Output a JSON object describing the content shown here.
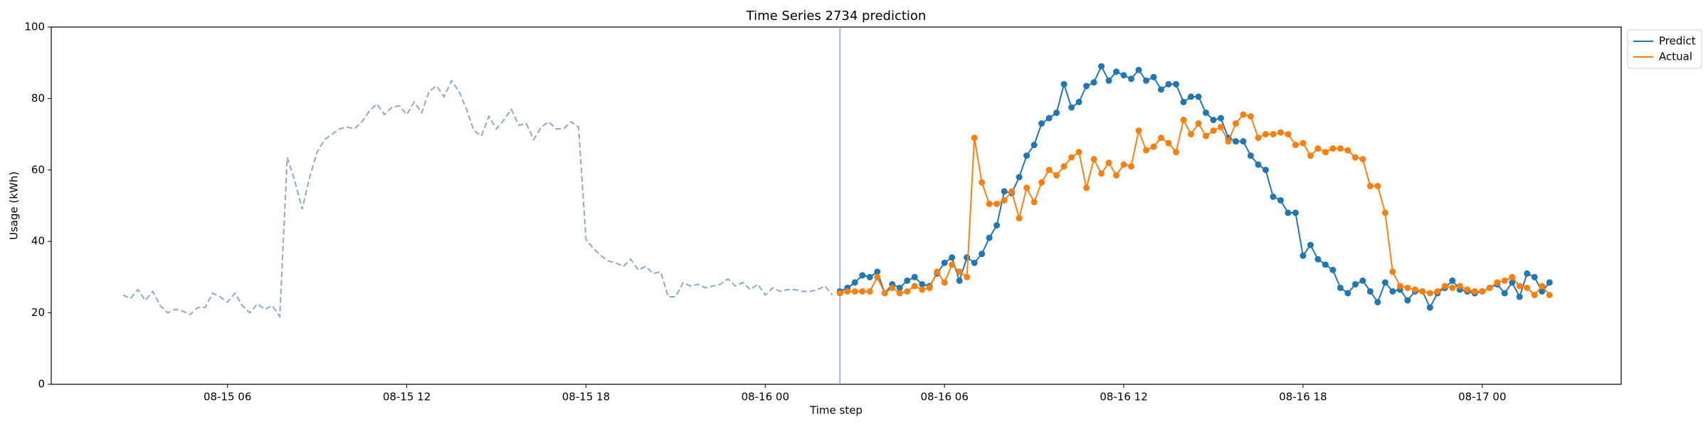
{
  "chart_data": {
    "type": "line",
    "title": "Time Series 2734 prediction",
    "x_label": "Time step",
    "y_label": "Usage (kWh)",
    "xlim": [
      "08-15 00:06",
      "08-17 04:39"
    ],
    "xticks": [
      {
        "value": "08-15 06:00",
        "label": "08-15 06"
      },
      {
        "value": "08-15 12:00",
        "label": "08-15 12"
      },
      {
        "value": "08-15 18:00",
        "label": "08-15 18"
      },
      {
        "value": "08-16 00:00",
        "label": "08-16 00"
      },
      {
        "value": "08-16 06:00",
        "label": "08-16 06"
      },
      {
        "value": "08-16 12:00",
        "label": "08-16 12"
      },
      {
        "value": "08-16 18:00",
        "label": "08-16 18"
      },
      {
        "value": "08-17 00:00",
        "label": "08-17 00"
      }
    ],
    "ylim": [
      0,
      100
    ],
    "yticks": [
      0,
      20,
      40,
      60,
      80,
      100
    ],
    "grid": false,
    "legend": "outside upper right",
    "vline": {
      "x": "08-16 02:30",
      "color": "#8fa4d4"
    },
    "x": [
      "08-15 02:30",
      "08-15 02:45",
      "08-15 03:00",
      "08-15 03:15",
      "08-15 03:30",
      "08-15 03:45",
      "08-15 04:00",
      "08-15 04:15",
      "08-15 04:30",
      "08-15 04:45",
      "08-15 05:00",
      "08-15 05:15",
      "08-15 05:30",
      "08-15 05:45",
      "08-15 06:00",
      "08-15 06:15",
      "08-15 06:30",
      "08-15 06:45",
      "08-15 07:00",
      "08-15 07:15",
      "08-15 07:30",
      "08-15 07:45",
      "08-15 08:00",
      "08-15 08:15",
      "08-15 08:30",
      "08-15 08:45",
      "08-15 09:00",
      "08-15 09:15",
      "08-15 09:30",
      "08-15 09:45",
      "08-15 10:00",
      "08-15 10:15",
      "08-15 10:30",
      "08-15 10:45",
      "08-15 11:00",
      "08-15 11:15",
      "08-15 11:30",
      "08-15 11:45",
      "08-15 12:00",
      "08-15 12:15",
      "08-15 12:30",
      "08-15 12:45",
      "08-15 13:00",
      "08-15 13:15",
      "08-15 13:30",
      "08-15 13:45",
      "08-15 14:00",
      "08-15 14:15",
      "08-15 14:30",
      "08-15 14:45",
      "08-15 15:00",
      "08-15 15:15",
      "08-15 15:30",
      "08-15 15:45",
      "08-15 16:00",
      "08-15 16:15",
      "08-15 16:30",
      "08-15 16:45",
      "08-15 17:00",
      "08-15 17:15",
      "08-15 17:30",
      "08-15 17:45",
      "08-15 18:00",
      "08-15 18:15",
      "08-15 18:30",
      "08-15 18:45",
      "08-15 19:00",
      "08-15 19:15",
      "08-15 19:30",
      "08-15 19:45",
      "08-15 20:00",
      "08-15 20:15",
      "08-15 20:30",
      "08-15 20:45",
      "08-15 21:00",
      "08-15 21:15",
      "08-15 21:30",
      "08-15 21:45",
      "08-15 22:00",
      "08-15 22:15",
      "08-15 22:30",
      "08-15 22:45",
      "08-15 23:00",
      "08-15 23:15",
      "08-15 23:30",
      "08-15 23:45",
      "08-16 00:00",
      "08-16 00:15",
      "08-16 00:30",
      "08-16 00:45",
      "08-16 01:00",
      "08-16 01:15",
      "08-16 01:30",
      "08-16 01:45",
      "08-16 02:00",
      "08-16 02:15",
      "08-16 02:30",
      "08-16 02:45",
      "08-16 03:00",
      "08-16 03:15",
      "08-16 03:30",
      "08-16 03:45",
      "08-16 04:00",
      "08-16 04:15",
      "08-16 04:30",
      "08-16 04:45",
      "08-16 05:00",
      "08-16 05:15",
      "08-16 05:30",
      "08-16 05:45",
      "08-16 06:00",
      "08-16 06:15",
      "08-16 06:30",
      "08-16 06:45",
      "08-16 07:00",
      "08-16 07:15",
      "08-16 07:30",
      "08-16 07:45",
      "08-16 08:00",
      "08-16 08:15",
      "08-16 08:30",
      "08-16 08:45",
      "08-16 09:00",
      "08-16 09:15",
      "08-16 09:30",
      "08-16 09:45",
      "08-16 10:00",
      "08-16 10:15",
      "08-16 10:30",
      "08-16 10:45",
      "08-16 11:00",
      "08-16 11:15",
      "08-16 11:30",
      "08-16 11:45",
      "08-16 12:00",
      "08-16 12:15",
      "08-16 12:30",
      "08-16 12:45",
      "08-16 13:00",
      "08-16 13:15",
      "08-16 13:30",
      "08-16 13:45",
      "08-16 14:00",
      "08-16 14:15",
      "08-16 14:30",
      "08-16 14:45",
      "08-16 15:00",
      "08-16 15:15",
      "08-16 15:30",
      "08-16 15:45",
      "08-16 16:00",
      "08-16 16:15",
      "08-16 16:30",
      "08-16 16:45",
      "08-16 17:00",
      "08-16 17:15",
      "08-16 17:30",
      "08-16 17:45",
      "08-16 18:00",
      "08-16 18:15",
      "08-16 18:30",
      "08-16 18:45",
      "08-16 19:00",
      "08-16 19:15",
      "08-16 19:30",
      "08-16 19:45",
      "08-16 20:00",
      "08-16 20:15",
      "08-16 20:30",
      "08-16 20:45",
      "08-16 21:00",
      "08-16 21:15",
      "08-16 21:30",
      "08-16 21:45",
      "08-16 22:00",
      "08-16 22:15",
      "08-16 22:30",
      "08-16 22:45",
      "08-16 23:00",
      "08-16 23:15",
      "08-16 23:30",
      "08-16 23:45",
      "08-17 00:00",
      "08-17 00:15",
      "08-17 00:30",
      "08-17 00:45",
      "08-17 01:00",
      "08-17 01:15",
      "08-17 01:30",
      "08-17 01:45",
      "08-17 02:00",
      "08-17 02:15"
    ],
    "series": [
      {
        "color": "#8da9cf",
        "dashed": true,
        "markers": false,
        "values": [
          25,
          24,
          26.5,
          23.5,
          26,
          22,
          20,
          21,
          20.5,
          19.5,
          21.5,
          21.5,
          25.5,
          24.5,
          23,
          25.5,
          22,
          20,
          22.5,
          21,
          22,
          19,
          63.5,
          57,
          49,
          58,
          65,
          68.5,
          70,
          71.5,
          72,
          71.5,
          73.5,
          76.5,
          78.5,
          75.5,
          77.5,
          78,
          75.5,
          79,
          76,
          82,
          83.5,
          80.5,
          85,
          82,
          77,
          71,
          69.5,
          75,
          71.5,
          74,
          77,
          72.5,
          73,
          68.5,
          72,
          73.5,
          71.5,
          71.5,
          73.5,
          72,
          40.5,
          38,
          36,
          34.5,
          34,
          33,
          35,
          32,
          33,
          31,
          31.5,
          24.5,
          24.5,
          28.5,
          27.5,
          28,
          27,
          27.5,
          28,
          29.5,
          27.5,
          28.5,
          26.5,
          28,
          25,
          27,
          26,
          26.5,
          26.5,
          26,
          26,
          26.5,
          27.5,
          25,
          null,
          null,
          null,
          null,
          null,
          null,
          null,
          null,
          null,
          null,
          null,
          null,
          null,
          null,
          null,
          null,
          null,
          null,
          null,
          null,
          null,
          null,
          null,
          null,
          null,
          null,
          null,
          null,
          null,
          null,
          null,
          null,
          null,
          null,
          null,
          null,
          null,
          null,
          null,
          null,
          null,
          null,
          null,
          null,
          null,
          null,
          null,
          null,
          null,
          null,
          null,
          null,
          null,
          null,
          null,
          null,
          null,
          null,
          null,
          null,
          null,
          null,
          null,
          null,
          null,
          null,
          null,
          null,
          null,
          null,
          null,
          null,
          null,
          null,
          null,
          null,
          null,
          null,
          null,
          null,
          null,
          null,
          null,
          null,
          null,
          null,
          null,
          null,
          null,
          null,
          null,
          null,
          null,
          null,
          null,
          null
        ]
      },
      {
        "name": "Predict",
        "color": "#1f77b4",
        "dashed": false,
        "markers": true,
        "values": [
          null,
          null,
          null,
          null,
          null,
          null,
          null,
          null,
          null,
          null,
          null,
          null,
          null,
          null,
          null,
          null,
          null,
          null,
          null,
          null,
          null,
          null,
          null,
          null,
          null,
          null,
          null,
          null,
          null,
          null,
          null,
          null,
          null,
          null,
          null,
          null,
          null,
          null,
          null,
          null,
          null,
          null,
          null,
          null,
          null,
          null,
          null,
          null,
          null,
          null,
          null,
          null,
          null,
          null,
          null,
          null,
          null,
          null,
          null,
          null,
          null,
          null,
          null,
          null,
          null,
          null,
          null,
          null,
          null,
          null,
          null,
          null,
          null,
          null,
          null,
          null,
          null,
          null,
          null,
          null,
          null,
          null,
          null,
          null,
          null,
          null,
          null,
          null,
          null,
          null,
          null,
          null,
          null,
          null,
          null,
          null,
          26,
          27,
          28.5,
          30.5,
          30,
          31.5,
          25.5,
          28,
          27,
          29,
          30,
          28,
          27.5,
          31,
          34,
          35.5,
          29,
          35.5,
          34,
          36.5,
          41,
          44.5,
          54,
          53.5,
          58,
          64,
          67,
          73,
          74.5,
          76,
          84,
          77.5,
          79,
          83.5,
          84.5,
          89,
          85,
          87.5,
          86.5,
          85.5,
          88,
          85,
          86,
          82.5,
          84,
          84,
          79,
          80.5,
          80.5,
          76,
          74,
          74.5,
          69,
          68,
          68,
          64,
          61.5,
          60,
          52.5,
          51.5,
          48,
          48,
          36,
          39,
          35,
          33.5,
          32,
          27,
          25.5,
          28,
          29,
          26,
          23,
          28.5,
          26,
          26.5,
          23.5,
          26,
          26,
          21.5,
          25.5,
          27,
          29,
          26.5,
          26,
          25.5,
          26,
          27,
          28,
          25.5,
          28.5,
          24.5,
          31,
          30,
          26,
          28.5
        ]
      },
      {
        "name": "Actual",
        "color": "#ff7f0e",
        "dashed": false,
        "markers": true,
        "values": [
          null,
          null,
          null,
          null,
          null,
          null,
          null,
          null,
          null,
          null,
          null,
          null,
          null,
          null,
          null,
          null,
          null,
          null,
          null,
          null,
          null,
          null,
          null,
          null,
          null,
          null,
          null,
          null,
          null,
          null,
          null,
          null,
          null,
          null,
          null,
          null,
          null,
          null,
          null,
          null,
          null,
          null,
          null,
          null,
          null,
          null,
          null,
          null,
          null,
          null,
          null,
          null,
          null,
          null,
          null,
          null,
          null,
          null,
          null,
          null,
          null,
          null,
          null,
          null,
          null,
          null,
          null,
          null,
          null,
          null,
          null,
          null,
          null,
          null,
          null,
          null,
          null,
          null,
          null,
          null,
          null,
          null,
          null,
          null,
          null,
          null,
          null,
          null,
          null,
          null,
          null,
          null,
          null,
          null,
          null,
          null,
          25.5,
          26,
          26,
          26,
          26,
          30,
          25.5,
          27,
          25.5,
          26,
          27.5,
          26.5,
          27,
          31.5,
          28.5,
          33.5,
          31.5,
          30,
          69,
          56.5,
          50.5,
          50.5,
          51.5,
          54,
          46.5,
          55,
          51,
          56.5,
          60,
          58.5,
          61,
          63.5,
          65,
          55,
          63,
          59,
          62,
          58.5,
          61.5,
          61,
          71,
          65.5,
          66.5,
          69,
          67.5,
          65,
          74,
          70,
          73,
          69.5,
          71,
          72,
          68,
          73,
          75.5,
          75,
          69,
          70,
          70,
          70.5,
          70,
          67,
          67.5,
          64,
          66,
          65,
          66,
          66,
          65.5,
          63.5,
          63,
          55.5,
          55.5,
          48,
          31.5,
          27.5,
          27,
          26.5,
          26,
          25.5,
          26,
          27.5,
          27,
          27.5,
          26.5,
          26,
          26,
          27,
          28.5,
          29,
          30,
          27.5,
          27,
          25,
          27.5,
          25
        ]
      }
    ]
  }
}
